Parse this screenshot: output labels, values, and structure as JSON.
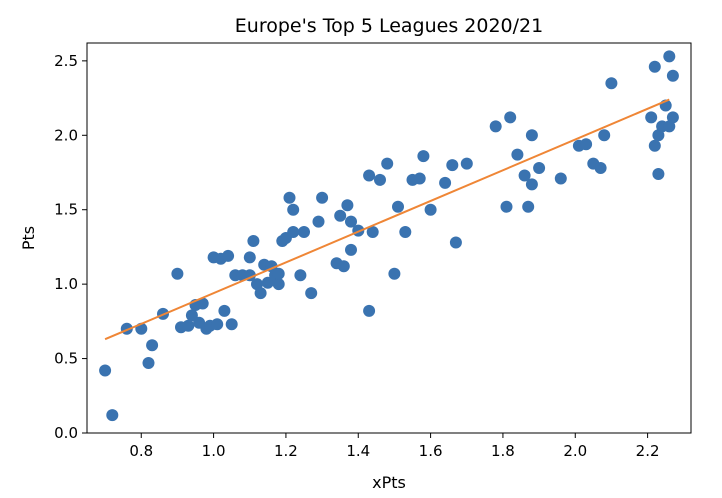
{
  "chart_data": {
    "type": "scatter",
    "title": "Europe's Top 5 Leagues 2020/21",
    "xlabel": "xPts",
    "ylabel": "Pts",
    "xlim": [
      0.65,
      2.32
    ],
    "ylim": [
      0.0,
      2.62
    ],
    "xticks": [
      0.8,
      1.0,
      1.2,
      1.4,
      1.6,
      1.8,
      2.0,
      2.2
    ],
    "xtick_labels": [
      "0.8",
      "1.0",
      "1.2",
      "1.4",
      "1.6",
      "1.8",
      "2.0",
      "2.2"
    ],
    "yticks": [
      0.0,
      0.5,
      1.0,
      1.5,
      2.0,
      2.5
    ],
    "ytick_labels": [
      "0.0",
      "0.5",
      "1.0",
      "1.5",
      "2.0",
      "2.5"
    ],
    "grid": false,
    "legend": "none",
    "colors": {
      "points": "#3a73b0",
      "trend": "#ef8636"
    },
    "points": [
      {
        "x": 0.7,
        "y": 0.42
      },
      {
        "x": 0.72,
        "y": 0.12
      },
      {
        "x": 0.76,
        "y": 0.7
      },
      {
        "x": 0.8,
        "y": 0.7
      },
      {
        "x": 0.82,
        "y": 0.47
      },
      {
        "x": 0.83,
        "y": 0.59
      },
      {
        "x": 0.86,
        "y": 0.8
      },
      {
        "x": 0.9,
        "y": 1.07
      },
      {
        "x": 0.91,
        "y": 0.71
      },
      {
        "x": 0.93,
        "y": 0.72
      },
      {
        "x": 0.94,
        "y": 0.79
      },
      {
        "x": 0.95,
        "y": 0.86
      },
      {
        "x": 0.96,
        "y": 0.74
      },
      {
        "x": 0.97,
        "y": 0.87
      },
      {
        "x": 0.98,
        "y": 0.7
      },
      {
        "x": 0.99,
        "y": 0.72
      },
      {
        "x": 1.0,
        "y": 1.18
      },
      {
        "x": 1.01,
        "y": 0.73
      },
      {
        "x": 1.02,
        "y": 1.17
      },
      {
        "x": 1.03,
        "y": 0.82
      },
      {
        "x": 1.04,
        "y": 1.19
      },
      {
        "x": 1.05,
        "y": 0.73
      },
      {
        "x": 1.06,
        "y": 1.06
      },
      {
        "x": 1.08,
        "y": 1.06
      },
      {
        "x": 1.1,
        "y": 1.06
      },
      {
        "x": 1.1,
        "y": 1.18
      },
      {
        "x": 1.11,
        "y": 1.29
      },
      {
        "x": 1.12,
        "y": 1.0
      },
      {
        "x": 1.13,
        "y": 0.94
      },
      {
        "x": 1.14,
        "y": 1.13
      },
      {
        "x": 1.15,
        "y": 1.01
      },
      {
        "x": 1.16,
        "y": 1.12
      },
      {
        "x": 1.17,
        "y": 1.06
      },
      {
        "x": 1.18,
        "y": 1.0
      },
      {
        "x": 1.18,
        "y": 1.07
      },
      {
        "x": 1.19,
        "y": 1.29
      },
      {
        "x": 1.2,
        "y": 1.31
      },
      {
        "x": 1.21,
        "y": 1.58
      },
      {
        "x": 1.22,
        "y": 1.5
      },
      {
        "x": 1.22,
        "y": 1.35
      },
      {
        "x": 1.24,
        "y": 1.06
      },
      {
        "x": 1.25,
        "y": 1.35
      },
      {
        "x": 1.27,
        "y": 0.94
      },
      {
        "x": 1.29,
        "y": 1.42
      },
      {
        "x": 1.3,
        "y": 1.58
      },
      {
        "x": 1.34,
        "y": 1.14
      },
      {
        "x": 1.35,
        "y": 1.46
      },
      {
        "x": 1.36,
        "y": 1.12
      },
      {
        "x": 1.37,
        "y": 1.53
      },
      {
        "x": 1.38,
        "y": 1.42
      },
      {
        "x": 1.38,
        "y": 1.23
      },
      {
        "x": 1.4,
        "y": 1.36
      },
      {
        "x": 1.43,
        "y": 1.73
      },
      {
        "x": 1.43,
        "y": 0.82
      },
      {
        "x": 1.44,
        "y": 1.35
      },
      {
        "x": 1.46,
        "y": 1.7
      },
      {
        "x": 1.48,
        "y": 1.81
      },
      {
        "x": 1.5,
        "y": 1.07
      },
      {
        "x": 1.51,
        "y": 1.52
      },
      {
        "x": 1.53,
        "y": 1.35
      },
      {
        "x": 1.55,
        "y": 1.7
      },
      {
        "x": 1.57,
        "y": 1.71
      },
      {
        "x": 1.58,
        "y": 1.86
      },
      {
        "x": 1.6,
        "y": 1.5
      },
      {
        "x": 1.64,
        "y": 1.68
      },
      {
        "x": 1.66,
        "y": 1.8
      },
      {
        "x": 1.67,
        "y": 1.28
      },
      {
        "x": 1.7,
        "y": 1.81
      },
      {
        "x": 1.78,
        "y": 2.06
      },
      {
        "x": 1.81,
        "y": 1.52
      },
      {
        "x": 1.82,
        "y": 2.12
      },
      {
        "x": 1.84,
        "y": 1.87
      },
      {
        "x": 1.86,
        "y": 1.73
      },
      {
        "x": 1.87,
        "y": 1.52
      },
      {
        "x": 1.88,
        "y": 2.0
      },
      {
        "x": 1.88,
        "y": 1.67
      },
      {
        "x": 1.9,
        "y": 1.78
      },
      {
        "x": 1.96,
        "y": 1.71
      },
      {
        "x": 2.01,
        "y": 1.93
      },
      {
        "x": 2.03,
        "y": 1.94
      },
      {
        "x": 2.05,
        "y": 1.81
      },
      {
        "x": 2.07,
        "y": 1.78
      },
      {
        "x": 2.08,
        "y": 2.0
      },
      {
        "x": 2.1,
        "y": 2.35
      },
      {
        "x": 2.21,
        "y": 2.12
      },
      {
        "x": 2.22,
        "y": 2.46
      },
      {
        "x": 2.22,
        "y": 1.93
      },
      {
        "x": 2.23,
        "y": 1.74
      },
      {
        "x": 2.23,
        "y": 2.0
      },
      {
        "x": 2.24,
        "y": 2.06
      },
      {
        "x": 2.25,
        "y": 2.2
      },
      {
        "x": 2.26,
        "y": 2.53
      },
      {
        "x": 2.26,
        "y": 2.06
      },
      {
        "x": 2.27,
        "y": 2.4
      },
      {
        "x": 2.27,
        "y": 2.12
      }
    ],
    "trendline": {
      "x": [
        0.7,
        2.26
      ],
      "y": [
        0.63,
        2.24
      ]
    }
  }
}
